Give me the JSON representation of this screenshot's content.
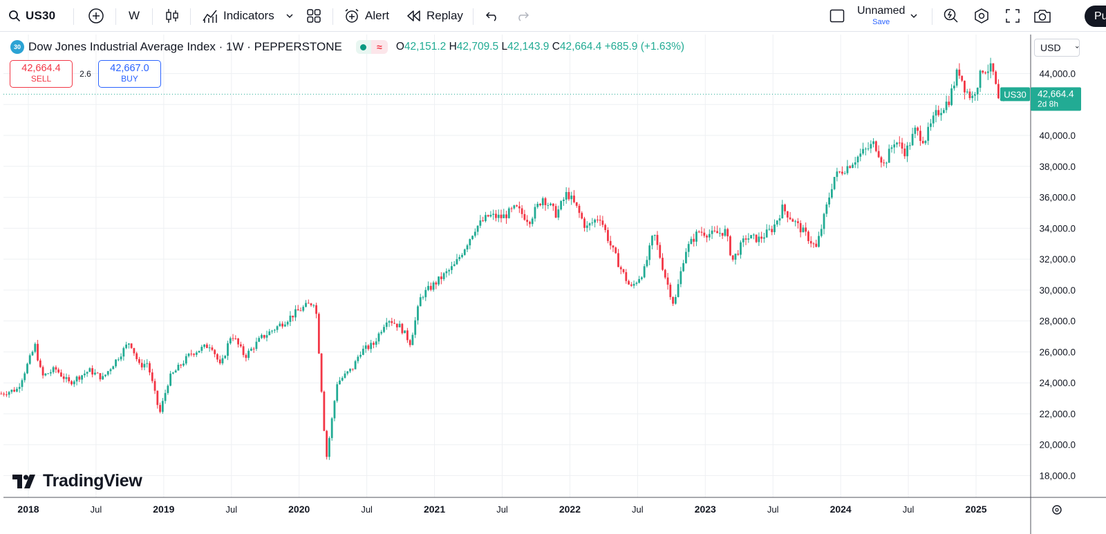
{
  "toolbar": {
    "symbol": "US30",
    "interval": "W",
    "indicators_label": "Indicators",
    "alert_label": "Alert",
    "replay_label": "Replay",
    "layout_name": "Unnamed",
    "save_label": "Save",
    "publish_label": "Pu"
  },
  "legend": {
    "badge": "30",
    "title": "Dow Jones Industrial Average Index · 1W · PEPPERSTONE",
    "open_key": "O",
    "open": "42,151.2",
    "high_key": "H",
    "high": "42,709.5",
    "low_key": "L",
    "low": "42,143.9",
    "close_key": "C",
    "close": "42,664.4",
    "change": "+685.9 (+1.63%)"
  },
  "trade": {
    "sell_price": "42,664.4",
    "sell_label": "SELL",
    "spread": "2.6",
    "buy_price": "42,667.0",
    "buy_label": "BUY"
  },
  "currency": "USD",
  "watermark": "TradingView",
  "colors": {
    "up": "#22ab94",
    "down": "#f23645",
    "grid": "#eef0f3",
    "price_line": "#22ab94"
  },
  "chart_data": {
    "type": "candlestick",
    "title": "Dow Jones Industrial Average Index · 1W · PEPPERSTONE",
    "interval": "1W",
    "ylim": [
      17000,
      45500
    ],
    "y_ticks": [
      18000,
      20000,
      22000,
      24000,
      26000,
      28000,
      30000,
      32000,
      34000,
      36000,
      38000,
      40000,
      42000,
      44000
    ],
    "y_tick_labels": [
      "18,000.0",
      "20,000.0",
      "22,000.0",
      "24,000.0",
      "26,000.0",
      "28,000.0",
      "30,000.0",
      "32,000.0",
      "34,000.0",
      "36,000.0",
      "38,000.0",
      "40,000.0",
      "42,000.0",
      "44,000.0"
    ],
    "x_range": [
      2017.8,
      2025.45
    ],
    "x_ticks": [
      2018,
      2018.5,
      2019,
      2019.5,
      2020,
      2020.5,
      2021,
      2021.5,
      2022,
      2022.5,
      2023,
      2023.5,
      2024,
      2024.5,
      2025
    ],
    "x_tick_labels": [
      "2018",
      "Jul",
      "2019",
      "Jul",
      "2020",
      "Jul",
      "2021",
      "Jul",
      "2022",
      "Jul",
      "2023",
      "Jul",
      "2024",
      "Jul",
      "2025"
    ],
    "last_price": 42664.4,
    "last_price_label": "42,664.4",
    "last_symbol": "US30",
    "countdown": "2d 8h",
    "price_path": [
      [
        2017.8,
        23300
      ],
      [
        2017.92,
        23600
      ],
      [
        2018.05,
        26400
      ],
      [
        2018.1,
        24400
      ],
      [
        2018.2,
        24900
      ],
      [
        2018.3,
        24000
      ],
      [
        2018.45,
        24800
      ],
      [
        2018.55,
        24300
      ],
      [
        2018.75,
        26700
      ],
      [
        2018.82,
        25100
      ],
      [
        2018.88,
        25300
      ],
      [
        2018.97,
        22000
      ],
      [
        2019.04,
        24300
      ],
      [
        2019.2,
        25900
      ],
      [
        2019.35,
        26500
      ],
      [
        2019.42,
        25000
      ],
      [
        2019.5,
        27200
      ],
      [
        2019.6,
        25700
      ],
      [
        2019.72,
        26900
      ],
      [
        2019.85,
        27700
      ],
      [
        2020.0,
        28700
      ],
      [
        2020.12,
        29300
      ],
      [
        2020.15,
        25600
      ],
      [
        2020.2,
        19000
      ],
      [
        2020.28,
        24000
      ],
      [
        2020.4,
        25000
      ],
      [
        2020.45,
        26000
      ],
      [
        2020.55,
        26500
      ],
      [
        2020.65,
        28200
      ],
      [
        2020.75,
        27600
      ],
      [
        2020.82,
        26600
      ],
      [
        2020.9,
        29600
      ],
      [
        2021.05,
        30800
      ],
      [
        2021.15,
        31600
      ],
      [
        2021.3,
        34000
      ],
      [
        2021.4,
        34800
      ],
      [
        2021.5,
        34700
      ],
      [
        2021.6,
        35300
      ],
      [
        2021.7,
        34500
      ],
      [
        2021.8,
        36000
      ],
      [
        2021.9,
        34900
      ],
      [
        2021.98,
        36300
      ],
      [
        2022.05,
        35300
      ],
      [
        2022.12,
        34000
      ],
      [
        2022.22,
        34800
      ],
      [
        2022.3,
        32900
      ],
      [
        2022.38,
        31300
      ],
      [
        2022.45,
        30100
      ],
      [
        2022.55,
        31300
      ],
      [
        2022.62,
        33700
      ],
      [
        2022.7,
        31000
      ],
      [
        2022.77,
        29000
      ],
      [
        2022.85,
        32500
      ],
      [
        2022.95,
        33800
      ],
      [
        2023.05,
        33600
      ],
      [
        2023.15,
        33800
      ],
      [
        2023.2,
        31900
      ],
      [
        2023.3,
        33400
      ],
      [
        2023.4,
        33300
      ],
      [
        2023.5,
        34000
      ],
      [
        2023.57,
        35300
      ],
      [
        2023.65,
        34500
      ],
      [
        2023.75,
        33500
      ],
      [
        2023.82,
        32700
      ],
      [
        2023.88,
        34800
      ],
      [
        2023.95,
        37300
      ],
      [
        2024.05,
        38000
      ],
      [
        2024.15,
        38800
      ],
      [
        2024.25,
        39500
      ],
      [
        2024.32,
        38100
      ],
      [
        2024.4,
        39700
      ],
      [
        2024.48,
        38900
      ],
      [
        2024.55,
        40300
      ],
      [
        2024.62,
        39700
      ],
      [
        2024.7,
        41300
      ],
      [
        2024.8,
        42300
      ],
      [
        2024.87,
        44300
      ],
      [
        2024.92,
        43000
      ],
      [
        2024.97,
        42400
      ],
      [
        2025.05,
        44300
      ],
      [
        2025.12,
        44300
      ],
      [
        2025.17,
        42000
      ],
      [
        2025.2,
        41900
      ],
      [
        2025.22,
        42664
      ]
    ]
  }
}
